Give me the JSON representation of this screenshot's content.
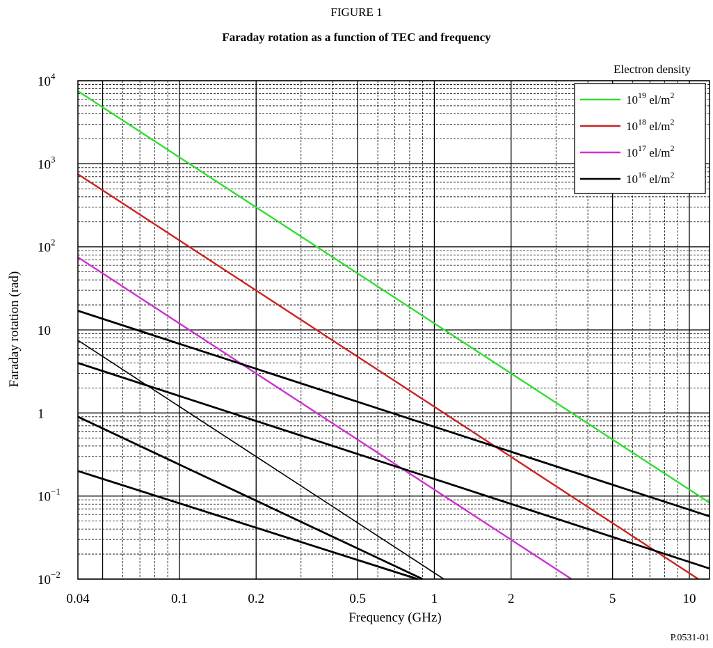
{
  "figure": {
    "label": "FIGURE 1",
    "title": "Faraday rotation as a function of TEC and frequency",
    "reference": "P.0531-01"
  },
  "chart_data": {
    "type": "line",
    "xlabel": "Frequency (GHz)",
    "ylabel": "Faraday rotation (rad)",
    "x_scale": "log",
    "y_scale": "log",
    "xlim": [
      0.04,
      12
    ],
    "ylim": [
      0.01,
      10000
    ],
    "x_ticks": [
      {
        "value": 0.04,
        "label": "0.04"
      },
      {
        "value": 0.1,
        "label": "0.1"
      },
      {
        "value": 0.2,
        "label": "0.2"
      },
      {
        "value": 0.5,
        "label": "0.5"
      },
      {
        "value": 1,
        "label": "1"
      },
      {
        "value": 2,
        "label": "2"
      },
      {
        "value": 5,
        "label": "5"
      },
      {
        "value": 10,
        "label": "10"
      }
    ],
    "y_ticks": [
      {
        "value": 0.01,
        "base": "10",
        "exp": "−2"
      },
      {
        "value": 0.1,
        "base": "10",
        "exp": "−1"
      },
      {
        "value": 1,
        "base": "1",
        "exp": ""
      },
      {
        "value": 10,
        "base": "10",
        "exp": ""
      },
      {
        "value": 100,
        "base": "10",
        "exp": "2"
      },
      {
        "value": 1000,
        "base": "10",
        "exp": "3"
      },
      {
        "value": 10000,
        "base": "10",
        "exp": "4"
      }
    ],
    "grid": true,
    "legend": {
      "title": "Electron density",
      "placement": "top-right",
      "entries": [
        {
          "base": "10",
          "exp": "19",
          "unit": " el/m",
          "unit_exp": "2",
          "color": "#33dd33"
        },
        {
          "base": "10",
          "exp": "18",
          "unit": " el/m",
          "unit_exp": "2",
          "color": "#cc2222"
        },
        {
          "base": "10",
          "exp": "17",
          "unit": " el/m",
          "unit_exp": "2",
          "color": "#cc33cc"
        },
        {
          "base": "10",
          "exp": "16",
          "unit": " el/m",
          "unit_exp": "2",
          "color": "#000000"
        }
      ]
    },
    "series": [
      {
        "color": "#33dd33",
        "width": 2.4,
        "points": [
          [
            0.04,
            7500
          ],
          [
            12,
            0.083
          ]
        ]
      },
      {
        "color": "#cc2222",
        "width": 2.4,
        "points": [
          [
            0.04,
            750
          ],
          [
            10.85,
            0.01
          ]
        ]
      },
      {
        "color": "#cc33cc",
        "width": 2.4,
        "points": [
          [
            0.04,
            75
          ],
          [
            3.45,
            0.01
          ]
        ]
      },
      {
        "color": "#000000",
        "width": 2.8,
        "points": [
          [
            0.04,
            17
          ],
          [
            12,
            0.057
          ]
        ]
      },
      {
        "color": "#000000",
        "width": 2.8,
        "points": [
          [
            0.04,
            4
          ],
          [
            12,
            0.0134
          ]
        ]
      },
      {
        "color": "#000000",
        "width": 2.8,
        "points": [
          [
            0.04,
            0.9
          ],
          [
            0.9,
            0.01
          ]
        ]
      },
      {
        "color": "#000000",
        "width": 2.8,
        "points": [
          [
            0.04,
            0.2
          ],
          [
            0.86,
            0.01
          ]
        ]
      },
      {
        "color": "#000000",
        "width": 1.6,
        "points": [
          [
            0.04,
            7.5
          ],
          [
            1.09,
            0.01
          ]
        ]
      }
    ]
  }
}
